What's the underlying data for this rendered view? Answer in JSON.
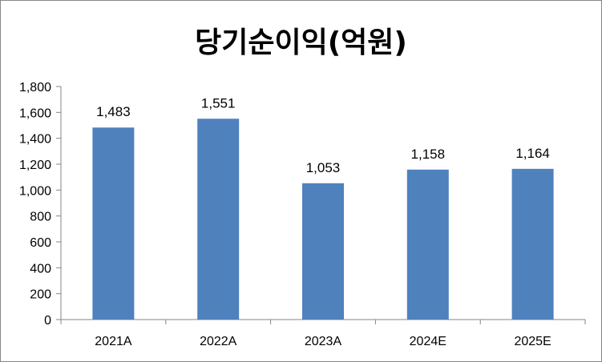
{
  "chart_data": {
    "type": "bar",
    "title": "당기순이익(억원)",
    "categories": [
      "2021A",
      "2022A",
      "2023A",
      "2024E",
      "2025E"
    ],
    "values": [
      1483,
      1551,
      1053,
      1158,
      1164
    ],
    "value_labels": [
      "1,483",
      "1,551",
      "1,053",
      "1,158",
      "1,164"
    ],
    "ylim": [
      0,
      1800
    ],
    "yticks": [
      "0",
      "200",
      "400",
      "600",
      "800",
      "1,000",
      "1,200",
      "1,400",
      "1,600",
      "1,800"
    ],
    "grid": false,
    "legend": "none",
    "colors": {
      "bar": "#4F81BD",
      "axis": "#868686"
    }
  }
}
